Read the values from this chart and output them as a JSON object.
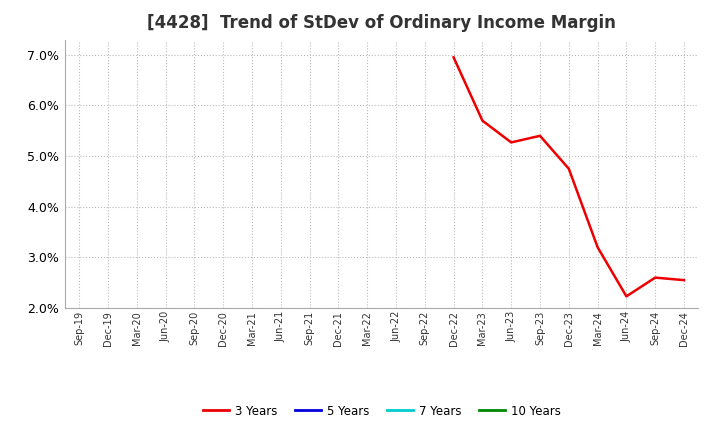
{
  "title": "[4428]  Trend of StDev of Ordinary Income Margin",
  "title_fontsize": 12,
  "title_color": "#333333",
  "background_color": "#ffffff",
  "plot_bg_color": "#ffffff",
  "grid_color": "#bbbbbb",
  "ylim": [
    0.02,
    0.073
  ],
  "yticks": [
    0.02,
    0.03,
    0.04,
    0.05,
    0.06,
    0.07
  ],
  "series": {
    "3 Years": {
      "color": "#ee0000",
      "linewidth": 1.8,
      "data": {
        "Dec-22": 0.0695,
        "Mar-23": 0.057,
        "Jun-23": 0.0527,
        "Sep-23": 0.054,
        "Dec-23": 0.0475,
        "Mar-24": 0.032,
        "Jun-24": 0.0223,
        "Sep-24": 0.026,
        "Dec-24": 0.0255
      }
    },
    "5 Years": {
      "color": "#0000dd",
      "linewidth": 1.8,
      "data": {}
    },
    "7 Years": {
      "color": "#00cccc",
      "linewidth": 1.8,
      "data": {}
    },
    "10 Years": {
      "color": "#008800",
      "linewidth": 1.8,
      "data": {}
    }
  },
  "xtick_labels": [
    "Sep-19",
    "Dec-19",
    "Mar-20",
    "Jun-20",
    "Sep-20",
    "Dec-20",
    "Mar-21",
    "Jun-21",
    "Sep-21",
    "Dec-21",
    "Mar-22",
    "Jun-22",
    "Sep-22",
    "Dec-22",
    "Mar-23",
    "Jun-23",
    "Sep-23",
    "Dec-23",
    "Mar-24",
    "Jun-24",
    "Sep-24",
    "Dec-24"
  ],
  "legend_entries": [
    "3 Years",
    "5 Years",
    "7 Years",
    "10 Years"
  ],
  "legend_colors": [
    "#ee0000",
    "#0000dd",
    "#00cccc",
    "#008800"
  ]
}
